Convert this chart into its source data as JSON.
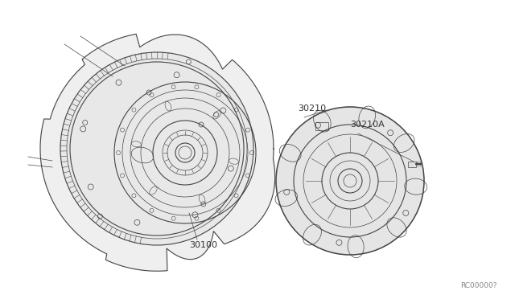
{
  "bg_color": "#ffffff",
  "line_color": "#444444",
  "line_color_light": "#666666",
  "label_color": "#333333",
  "ref_color": "#888888",
  "fig_width": 6.4,
  "fig_height": 3.72,
  "dpi": 100,
  "diagram_code": "RC00000?",
  "label_30100": "30100",
  "label_30210": "30210",
  "label_30210A": "30210A"
}
